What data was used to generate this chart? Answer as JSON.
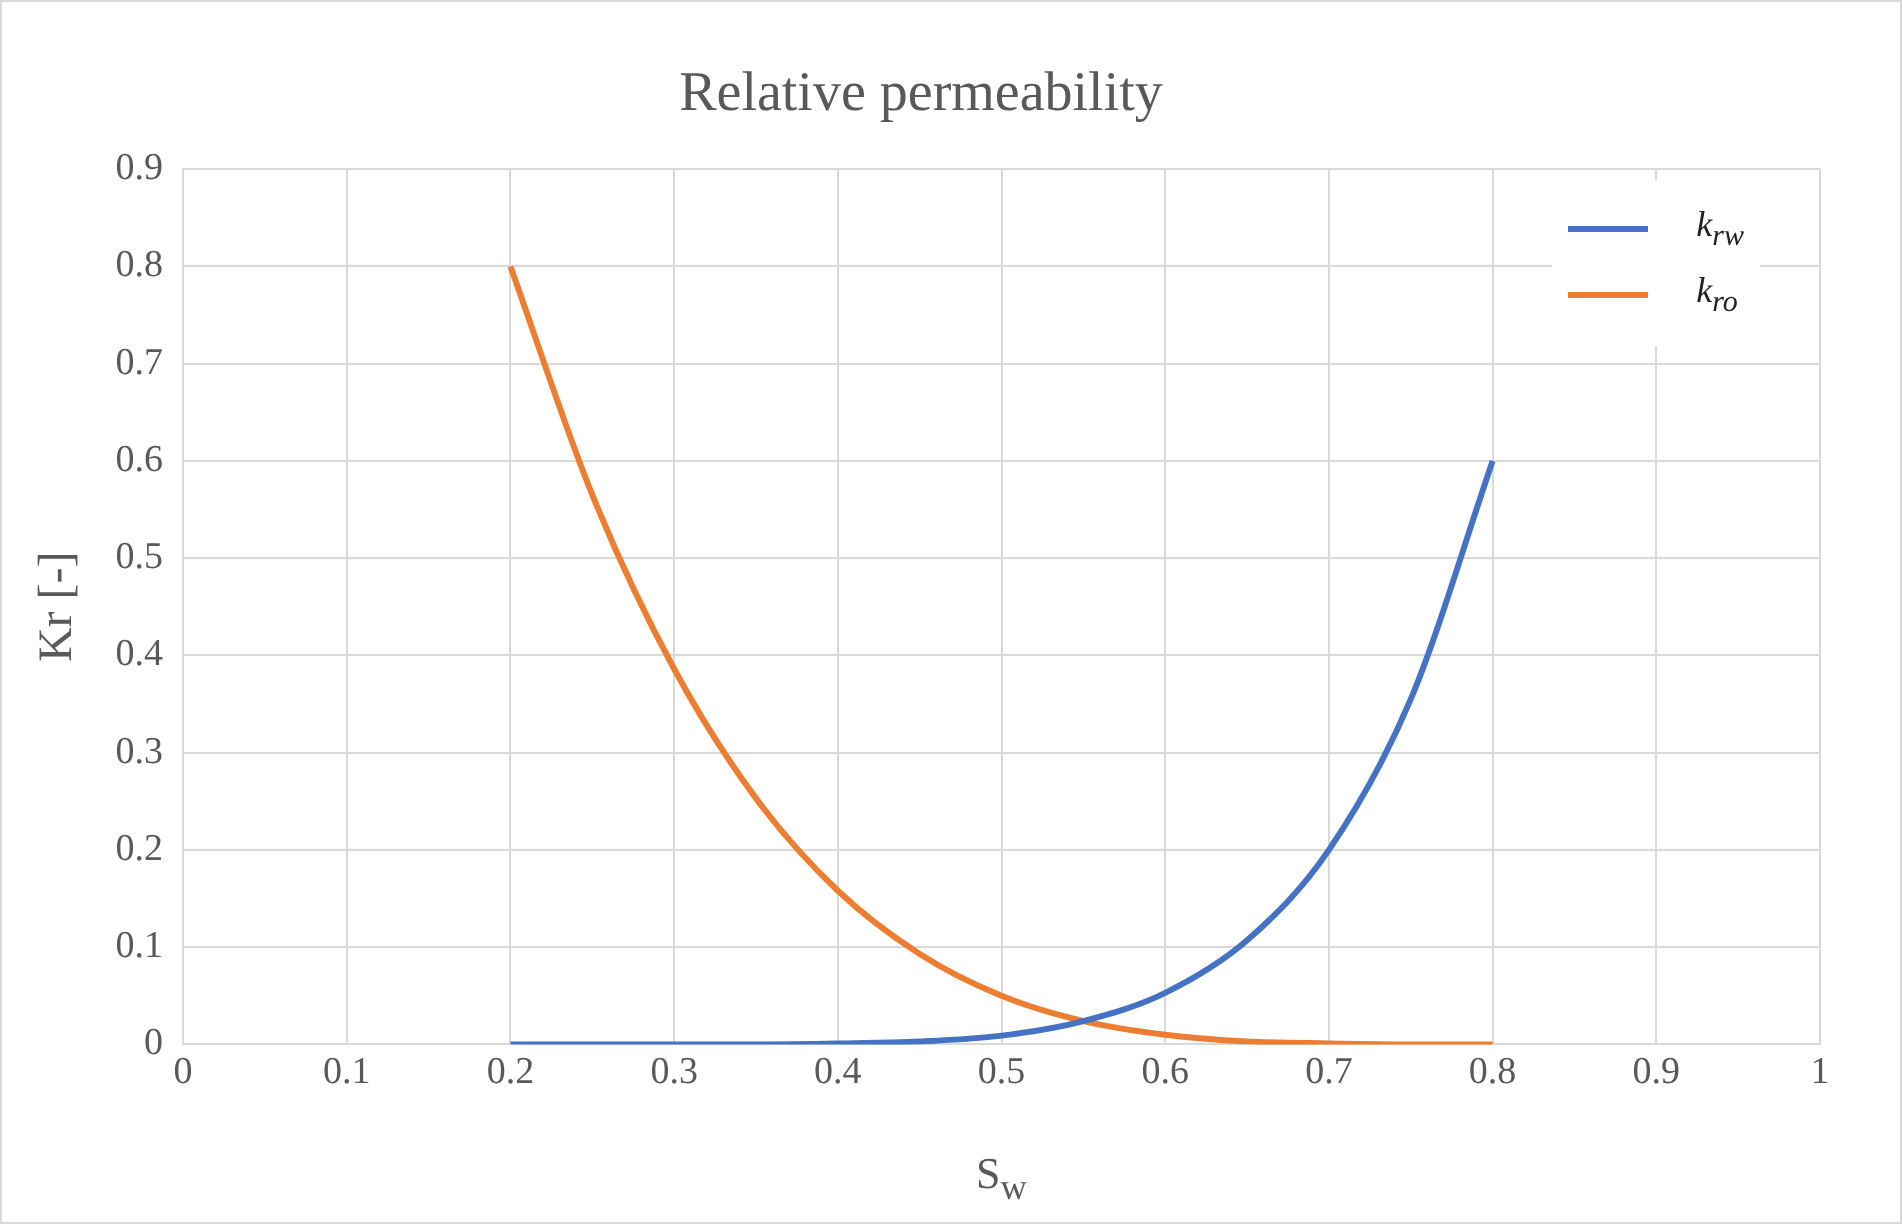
{
  "chart_data": {
    "type": "line",
    "title": "Relative permeability",
    "xlabel": "S$_{w}$",
    "ylabel": "Kr [-]",
    "x": [
      0.2,
      0.25,
      0.3,
      0.35,
      0.4,
      0.45,
      0.5,
      0.55,
      0.6,
      0.65,
      0.7,
      0.75,
      0.8
    ],
    "series": [
      {
        "name": "k$_{rw}$",
        "color": "#4472c4",
        "values": [
          0,
          0,
          0,
          0,
          0.001,
          0.003,
          0.009,
          0.024,
          0.053,
          0.107,
          0.2,
          0.355,
          0.6
        ]
      },
      {
        "name": "k$_{ro}$",
        "color": "#ed7d31",
        "values": [
          0.8,
          0.565,
          0.386,
          0.253,
          0.158,
          0.093,
          0.05,
          0.024,
          0.01,
          0.003,
          0.001,
          0,
          0
        ]
      }
    ],
    "xlim": [
      0,
      1
    ],
    "xticks": [
      0,
      0.1,
      0.2,
      0.3,
      0.4,
      0.5,
      0.6,
      0.7,
      0.8,
      0.9,
      1
    ],
    "ylim": [
      0,
      0.9
    ],
    "yticks": [
      0,
      0.1,
      0.2,
      0.3,
      0.4,
      0.5,
      0.6,
      0.7,
      0.8,
      0.9
    ],
    "grid": true,
    "legend": "top right",
    "marker": "none",
    "line_style": "solid"
  }
}
